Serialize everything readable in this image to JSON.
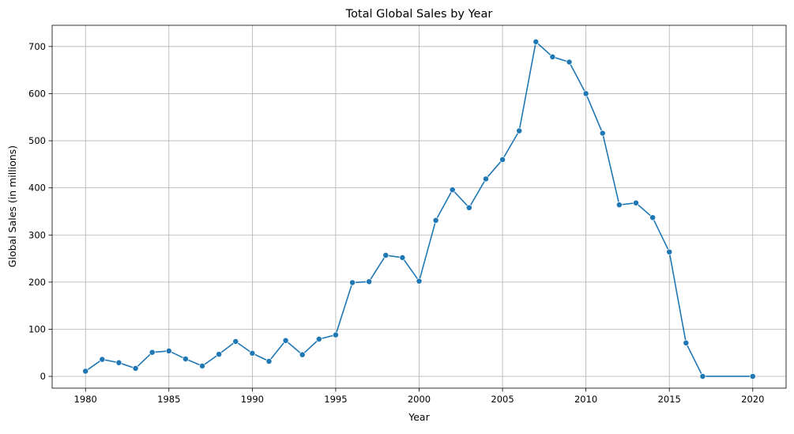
{
  "chart_data": {
    "type": "line",
    "title": "Total Global Sales by Year",
    "xlabel": "Year",
    "ylabel": "Global Sales (in millions)",
    "xlim": [
      1978,
      2022
    ],
    "ylim": [
      -25,
      745
    ],
    "xticks": [
      1980,
      1985,
      1990,
      1995,
      2000,
      2005,
      2010,
      2015,
      2020
    ],
    "yticks": [
      0,
      100,
      200,
      300,
      400,
      500,
      600,
      700
    ],
    "grid": true,
    "legend": "none",
    "line_color": "#1f77b4",
    "series": [
      {
        "x": [
          1980,
          1981,
          1982,
          1983,
          1984,
          1985,
          1986,
          1987,
          1988,
          1989,
          1990,
          1991,
          1992,
          1993,
          1994,
          1995,
          1996,
          1997,
          1998,
          1999,
          2000,
          2001,
          2002,
          2003,
          2004,
          2005,
          2006,
          2007,
          2008,
          2009,
          2010,
          2011,
          2012,
          2013,
          2014,
          2015,
          2016,
          2017,
          2020
        ],
        "values": [
          11,
          36,
          29,
          17,
          51,
          54,
          37,
          22,
          47,
          74,
          49,
          32,
          76,
          46,
          79,
          88,
          199,
          201,
          257,
          252,
          202,
          331,
          396,
          358,
          419,
          460,
          521,
          710,
          678,
          667,
          600,
          516,
          364,
          368,
          337,
          264,
          71,
          0,
          0
        ]
      }
    ]
  }
}
